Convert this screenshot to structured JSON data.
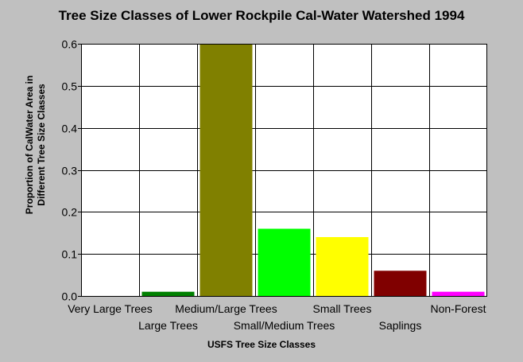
{
  "chart_data": {
    "type": "bar",
    "title": "Tree Size Classes of Lower Rockpile Cal-Water Watershed 1994",
    "xlabel": "USFS Tree Size Classes",
    "ylabel_lines": [
      "Proportion of CalWater Area in",
      "Different Tree Size Classes"
    ],
    "categories": [
      "Very Large Trees",
      "Large Trees",
      "Medium/Large Trees",
      "Small/Medium Trees",
      "Small Trees",
      "Saplings",
      "Non-Forest"
    ],
    "values": [
      0.0,
      0.01,
      0.61,
      0.16,
      0.14,
      0.06,
      0.01
    ],
    "colors": [
      "#ffffff",
      "#008000",
      "#808000",
      "#00ff00",
      "#ffff00",
      "#800000",
      "#ff00ff"
    ],
    "ylim": [
      0,
      0.6
    ],
    "yticks": [
      0.0,
      0.1,
      0.2,
      0.3,
      0.4,
      0.5,
      0.6
    ],
    "ytick_labels": [
      "0.0",
      "0.1",
      "0.2",
      "0.3",
      "0.4",
      "0.5",
      "0.6"
    ],
    "grid": true,
    "plot_background": "#ffffff",
    "figure_background": "#c0c0c0"
  }
}
